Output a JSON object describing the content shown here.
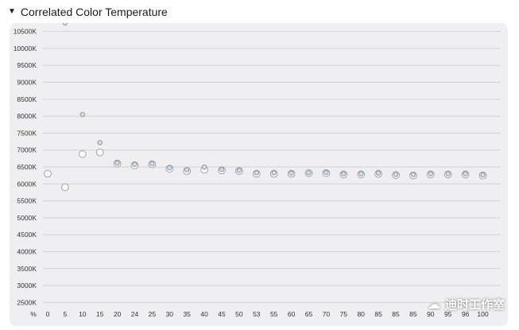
{
  "panel": {
    "title": "Correlated Color Temperature"
  },
  "watermark": {
    "text": "迪时工作室",
    "icon": "wechat-icon"
  },
  "chart_data": {
    "type": "scatter",
    "title": "",
    "xlabel": "%",
    "ylabel": "",
    "categories": [
      "0",
      "5",
      "10",
      "15",
      "20",
      "24",
      "25",
      "30",
      "35",
      "40",
      "45",
      "50",
      "53",
      "55",
      "60",
      "65",
      "70",
      "75",
      "80",
      "85",
      "85",
      "85",
      "90",
      "95",
      "96",
      "100"
    ],
    "y_ticks": [
      "2500K",
      "3000K",
      "3500K",
      "4000K",
      "4500K",
      "5000K",
      "5500K",
      "6000K",
      "6500K",
      "7000K",
      "7500K",
      "8000K",
      "8500K",
      "9000K",
      "9500K",
      "10000K",
      "10500K"
    ],
    "ylim": [
      2250,
      10750
    ],
    "grid": true,
    "series": [
      {
        "values": [
          6300,
          5900,
          6880,
          6930,
          6600,
          6550,
          6580,
          6450,
          6380,
          6420,
          6400,
          6380,
          6300,
          6300,
          6300,
          6320,
          6320,
          6280,
          6280,
          6300,
          6260,
          6250,
          6280,
          6280,
          6280,
          6250
        ]
      },
      {
        "values": [
          null,
          10750,
          8050,
          7220,
          6620,
          6580,
          6600,
          6480,
          6420,
          6500,
          6430,
          6400,
          6330,
          6330,
          6320,
          6330,
          6340,
          6300,
          6300,
          6320,
          6280,
          6280,
          6300,
          6300,
          6300,
          6270
        ]
      }
    ]
  }
}
